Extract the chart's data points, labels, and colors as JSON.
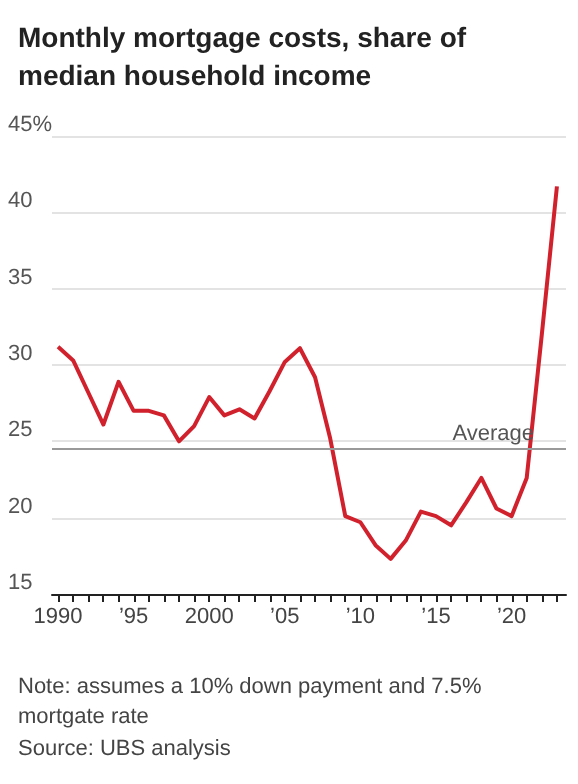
{
  "chart_data": {
    "type": "line",
    "title": "Monthly mortgage costs, share of median household income",
    "x": [
      1990,
      1991,
      1992,
      1993,
      1994,
      1995,
      1996,
      1997,
      1998,
      1999,
      2000,
      2001,
      2002,
      2003,
      2004,
      2005,
      2006,
      2007,
      2008,
      2009,
      2010,
      2011,
      2012,
      2013,
      2014,
      2015,
      2016,
      2017,
      2018,
      2019,
      2020,
      2021,
      2022,
      2023
    ],
    "series": [
      {
        "color": "#d0212d",
        "values": [
          31.2,
          30.3,
          28.2,
          26.1,
          28.9,
          27.0,
          27.0,
          26.7,
          25.0,
          26.0,
          27.9,
          26.7,
          27.1,
          26.5,
          28.3,
          30.2,
          31.1,
          29.2,
          25.2,
          20.1,
          19.7,
          18.2,
          17.3,
          18.5,
          20.4,
          20.1,
          19.5,
          21.0,
          22.6,
          20.6,
          20.1,
          22.6,
          32.0,
          41.7
        ]
      }
    ],
    "xlim": [
      1989.6,
      2023.6
    ],
    "xticks": [
      {
        "value": 1990,
        "label": "1990"
      },
      {
        "value": 1991,
        "label": null
      },
      {
        "value": 1992,
        "label": null
      },
      {
        "value": 1993,
        "label": null
      },
      {
        "value": 1994,
        "label": null
      },
      {
        "value": 1995,
        "label": "’95"
      },
      {
        "value": 1996,
        "label": null
      },
      {
        "value": 1997,
        "label": null
      },
      {
        "value": 1998,
        "label": null
      },
      {
        "value": 1999,
        "label": null
      },
      {
        "value": 2000,
        "label": "2000"
      },
      {
        "value": 2001,
        "label": null
      },
      {
        "value": 2002,
        "label": null
      },
      {
        "value": 2003,
        "label": null
      },
      {
        "value": 2004,
        "label": null
      },
      {
        "value": 2005,
        "label": "’05"
      },
      {
        "value": 2006,
        "label": null
      },
      {
        "value": 2007,
        "label": null
      },
      {
        "value": 2008,
        "label": null
      },
      {
        "value": 2009,
        "label": null
      },
      {
        "value": 2010,
        "label": "’10"
      },
      {
        "value": 2011,
        "label": null
      },
      {
        "value": 2012,
        "label": null
      },
      {
        "value": 2013,
        "label": null
      },
      {
        "value": 2014,
        "label": null
      },
      {
        "value": 2015,
        "label": "’15"
      },
      {
        "value": 2016,
        "label": null
      },
      {
        "value": 2017,
        "label": null
      },
      {
        "value": 2018,
        "label": null
      },
      {
        "value": 2019,
        "label": null
      },
      {
        "value": 2020,
        "label": "’20"
      },
      {
        "value": 2021,
        "label": null
      },
      {
        "value": 2022,
        "label": null
      },
      {
        "value": 2023,
        "label": null
      }
    ],
    "ylim": [
      15,
      45
    ],
    "yticks": [
      15,
      20,
      25,
      30,
      35,
      40,
      {
        "value": 45,
        "label": "45%"
      }
    ],
    "grid": "y",
    "marker": "none",
    "line_style": "solid",
    "ref_lines": [
      {
        "axis": "y",
        "value": 24.5,
        "label": "Average",
        "color": "#999999"
      }
    ],
    "annotations": [
      "Note: assumes a 10% down payment and 7.5% mortgate rate",
      "Source: UBS analysis"
    ]
  }
}
